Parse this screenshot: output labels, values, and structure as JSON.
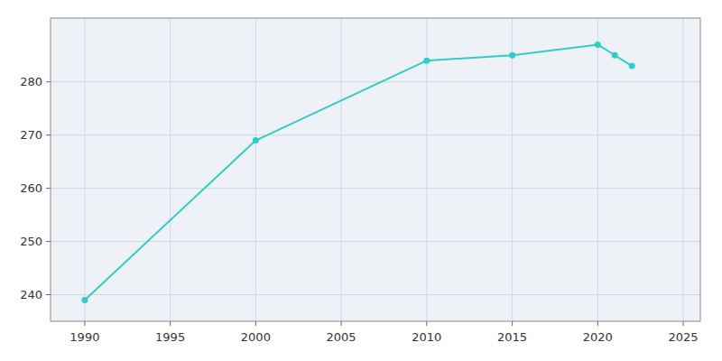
{
  "chart_data": {
    "type": "line",
    "x": [
      1990,
      2000,
      2010,
      2015,
      2020,
      2021,
      2022
    ],
    "values": [
      239,
      269,
      284,
      285,
      287,
      285,
      283
    ],
    "color": "#2ECEC8",
    "marker": "circle",
    "xlim": [
      1988,
      2026
    ],
    "ylim": [
      235,
      292
    ],
    "xticks": [
      1990,
      1995,
      2000,
      2005,
      2010,
      2015,
      2020,
      2025
    ],
    "yticks": [
      240,
      250,
      260,
      270,
      280
    ],
    "grid": true
  }
}
